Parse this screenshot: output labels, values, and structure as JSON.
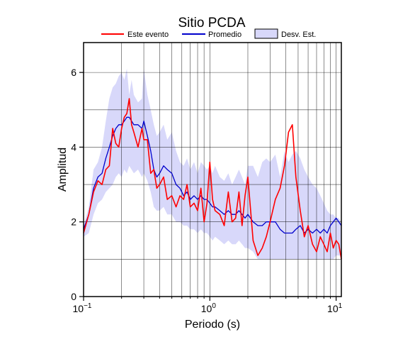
{
  "chart_data": {
    "type": "line",
    "title": "Sitio PCDA",
    "xlabel": "Periodo (s)",
    "ylabel": "Amplitud",
    "x_scale": "log",
    "xlim": [
      0.1,
      11
    ],
    "ylim": [
      0,
      6.8
    ],
    "x_ticks": [
      {
        "value": 0.1,
        "mantissa": "10",
        "exponent": "−1"
      },
      {
        "value": 1,
        "mantissa": "10",
        "exponent": "0"
      },
      {
        "value": 10,
        "mantissa": "10",
        "exponent": "1"
      }
    ],
    "y_ticks": [
      0,
      2,
      4,
      6
    ],
    "y_gridlines": [
      1,
      2,
      3,
      4,
      5,
      6
    ],
    "grid": true,
    "legend_position": "top",
    "legend": {
      "este": "Este evento",
      "promedio": "Promedio",
      "desv": "Desv. Est."
    },
    "colors": {
      "este": "#ff0000",
      "promedio": "#0000cc",
      "band": "#d8d8fa",
      "band_stroke": "#000000",
      "grid": "#000000"
    },
    "series": [
      {
        "name": "Este evento",
        "x": [
          0.1,
          0.11,
          0.12,
          0.13,
          0.14,
          0.15,
          0.16,
          0.17,
          0.18,
          0.19,
          0.2,
          0.21,
          0.22,
          0.23,
          0.24,
          0.25,
          0.27,
          0.29,
          0.3,
          0.32,
          0.34,
          0.36,
          0.38,
          0.4,
          0.43,
          0.46,
          0.5,
          0.54,
          0.58,
          0.62,
          0.66,
          0.7,
          0.75,
          0.8,
          0.85,
          0.9,
          0.95,
          1.0,
          1.05,
          1.1,
          1.2,
          1.3,
          1.4,
          1.5,
          1.6,
          1.7,
          1.8,
          1.9,
          2.0,
          2.2,
          2.4,
          2.6,
          2.8,
          3.0,
          3.3,
          3.6,
          3.9,
          4.2,
          4.5,
          4.8,
          5.2,
          5.6,
          6.0,
          6.5,
          7.0,
          7.5,
          8.0,
          8.5,
          9.0,
          9.5,
          10.0,
          10.5,
          11.0
        ],
        "y": [
          1.7,
          2.2,
          2.8,
          3.1,
          3.0,
          3.4,
          3.5,
          4.5,
          4.1,
          4.0,
          4.5,
          4.8,
          4.9,
          5.3,
          4.6,
          4.4,
          4.0,
          4.5,
          4.2,
          4.2,
          3.3,
          3.4,
          2.9,
          3.0,
          3.2,
          2.6,
          2.7,
          2.4,
          2.7,
          2.6,
          3.0,
          2.4,
          2.5,
          2.3,
          2.9,
          2.0,
          2.5,
          3.6,
          2.6,
          2.3,
          2.2,
          1.9,
          2.8,
          2.0,
          2.1,
          2.8,
          1.9,
          2.7,
          3.2,
          1.5,
          1.1,
          1.3,
          1.6,
          2.0,
          2.6,
          2.9,
          3.5,
          4.4,
          4.6,
          3.2,
          2.3,
          1.6,
          1.9,
          1.4,
          1.2,
          1.6,
          1.4,
          1.2,
          1.7,
          1.3,
          1.5,
          1.4,
          1.0
        ]
      },
      {
        "name": "Promedio",
        "x": [
          0.1,
          0.11,
          0.12,
          0.13,
          0.14,
          0.15,
          0.16,
          0.17,
          0.18,
          0.19,
          0.2,
          0.21,
          0.22,
          0.23,
          0.24,
          0.25,
          0.27,
          0.29,
          0.3,
          0.32,
          0.34,
          0.36,
          0.38,
          0.4,
          0.43,
          0.46,
          0.5,
          0.54,
          0.58,
          0.62,
          0.66,
          0.7,
          0.75,
          0.8,
          0.85,
          0.9,
          0.95,
          1.0,
          1.05,
          1.1,
          1.2,
          1.3,
          1.4,
          1.5,
          1.6,
          1.7,
          1.8,
          1.9,
          2.0,
          2.2,
          2.4,
          2.6,
          2.8,
          3.0,
          3.3,
          3.6,
          3.9,
          4.2,
          4.5,
          4.8,
          5.2,
          5.6,
          6.0,
          6.5,
          7.0,
          7.5,
          8.0,
          8.5,
          9.0,
          9.5,
          10.0,
          10.5,
          11.0
        ],
        "y": [
          1.8,
          2.2,
          2.9,
          3.2,
          3.3,
          3.7,
          4.0,
          4.3,
          4.5,
          4.6,
          4.6,
          4.7,
          4.8,
          4.8,
          4.7,
          4.6,
          4.6,
          4.5,
          4.7,
          4.3,
          3.9,
          3.4,
          3.2,
          3.3,
          3.5,
          3.4,
          3.3,
          3.0,
          2.9,
          2.7,
          2.8,
          2.6,
          2.7,
          2.6,
          2.7,
          2.6,
          2.6,
          2.5,
          2.4,
          2.4,
          2.3,
          2.2,
          2.3,
          2.2,
          2.2,
          2.3,
          2.2,
          2.1,
          2.2,
          2.0,
          1.9,
          1.9,
          2.0,
          2.0,
          2.0,
          1.8,
          1.7,
          1.7,
          1.7,
          1.8,
          1.9,
          1.7,
          1.8,
          1.7,
          1.8,
          1.7,
          1.8,
          1.7,
          1.9,
          2.0,
          2.1,
          2.0,
          1.9
        ]
      }
    ],
    "band": {
      "name": "Desv. Est.",
      "x": [
        0.1,
        0.11,
        0.12,
        0.13,
        0.14,
        0.15,
        0.16,
        0.17,
        0.18,
        0.19,
        0.2,
        0.21,
        0.22,
        0.23,
        0.24,
        0.25,
        0.27,
        0.29,
        0.3,
        0.32,
        0.34,
        0.36,
        0.38,
        0.4,
        0.43,
        0.46,
        0.5,
        0.54,
        0.58,
        0.62,
        0.66,
        0.7,
        0.75,
        0.8,
        0.85,
        0.9,
        0.95,
        1.0,
        1.05,
        1.1,
        1.2,
        1.3,
        1.4,
        1.5,
        1.6,
        1.7,
        1.8,
        1.9,
        2.0,
        2.2,
        2.4,
        2.6,
        2.8,
        3.0,
        3.3,
        3.6,
        3.9,
        4.2,
        4.5,
        4.8,
        5.2,
        5.6,
        6.0,
        6.5,
        7.0,
        7.5,
        8.0,
        8.5,
        9.0,
        9.5,
        10.0,
        10.5,
        11.0
      ],
      "upper": [
        1.9,
        2.4,
        3.4,
        3.6,
        4.0,
        4.7,
        5.3,
        5.6,
        5.7,
        5.9,
        6.0,
        5.8,
        6.1,
        5.4,
        5.8,
        5.4,
        5.2,
        5.3,
        6.1,
        5.4,
        5.0,
        4.6,
        4.3,
        4.4,
        4.6,
        4.2,
        4.4,
        3.9,
        3.6,
        3.5,
        3.7,
        3.4,
        3.6,
        3.3,
        3.6,
        3.5,
        3.4,
        3.5,
        3.3,
        3.5,
        3.2,
        3.1,
        3.3,
        3.0,
        3.2,
        3.4,
        3.2,
        3.0,
        3.5,
        3.5,
        3.2,
        3.6,
        3.7,
        3.6,
        3.8,
        3.2,
        3.9,
        3.6,
        3.8,
        3.9,
        3.7,
        3.4,
        3.2,
        3.0,
        2.9,
        2.7,
        2.5,
        2.3,
        2.2,
        2.2,
        2.1,
        2.1,
        2.0
      ],
      "lower": [
        1.6,
        1.7,
        2.2,
        2.5,
        2.6,
        2.8,
        2.9,
        3.0,
        3.2,
        3.3,
        3.2,
        3.4,
        3.3,
        3.5,
        3.4,
        3.3,
        3.4,
        3.2,
        3.3,
        3.1,
        2.8,
        2.4,
        2.3,
        2.3,
        2.4,
        2.2,
        2.2,
        2.0,
        2.0,
        1.9,
        1.9,
        1.8,
        1.8,
        1.7,
        1.8,
        1.7,
        1.7,
        1.6,
        1.5,
        1.6,
        1.5,
        1.4,
        1.5,
        1.4,
        1.4,
        1.5,
        1.4,
        1.3,
        1.3,
        1.2,
        1.0,
        1.0,
        1.0,
        1.0,
        1.0,
        1.0,
        1.0,
        1.0,
        1.0,
        1.0,
        1.0,
        1.0,
        1.0,
        1.0,
        1.0,
        1.0,
        1.0,
        1.0,
        1.0,
        1.0,
        1.1,
        1.1,
        1.1
      ]
    }
  }
}
